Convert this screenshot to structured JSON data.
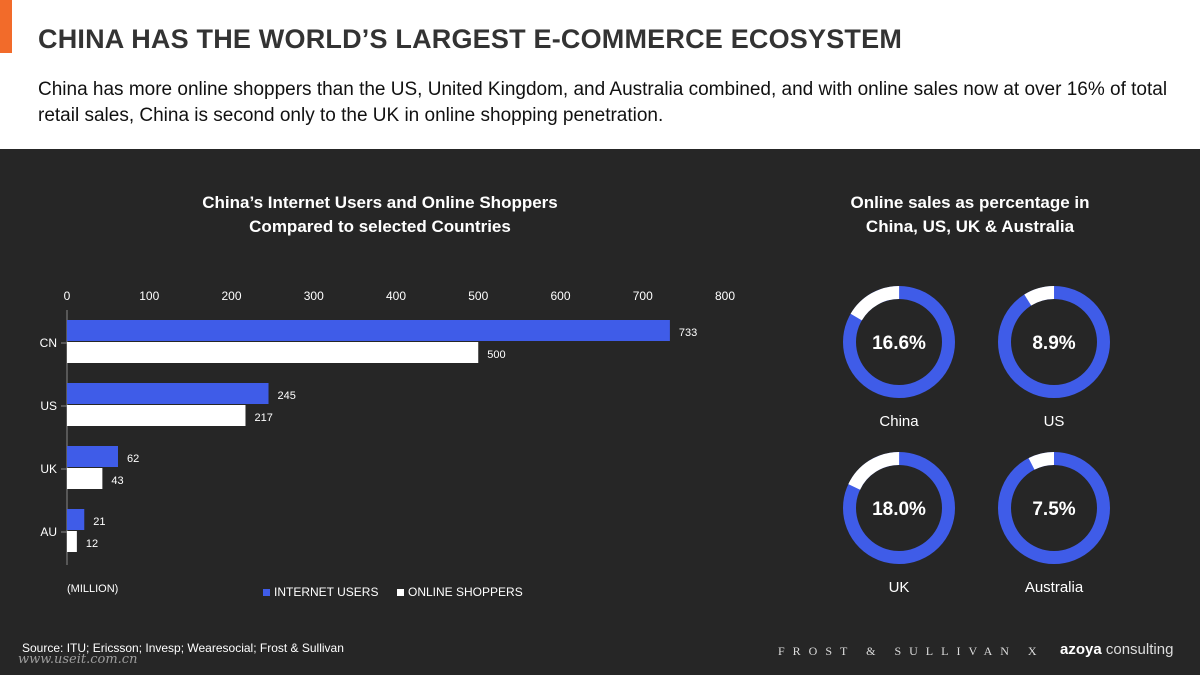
{
  "header": {
    "title": "CHINA HAS THE WORLD’S LARGEST E-COMMERCE ECOSYSTEM",
    "subtitle": "China has more online shoppers than the US, United Kingdom, and Australia combined, and with online sales now at over 16% of total retail sales, China is second only to the UK in online shopping penetration."
  },
  "colors": {
    "accent": "#f26b2a",
    "blue": "#3f5ce8",
    "white": "#ffffff",
    "panel": "#262626"
  },
  "chart_data": [
    {
      "type": "bar",
      "orientation": "horizontal",
      "title": "China’s Internet Users and Online Shoppers\nCompared to selected Countries",
      "categories": [
        "CN",
        "US",
        "UK",
        "AU"
      ],
      "series": [
        {
          "name": "INTERNET USERS",
          "values": [
            733,
            245,
            62,
            21
          ],
          "color": "#3f5ce8"
        },
        {
          "name": "ONLINE SHOPPERS",
          "values": [
            500,
            217,
            43,
            12
          ],
          "color": "#ffffff"
        }
      ],
      "xlim": [
        0,
        800
      ],
      "xticks": [
        0,
        100,
        200,
        300,
        400,
        500,
        600,
        700,
        800
      ],
      "unit_label": "(MILLION)",
      "legend_position": "bottom"
    },
    {
      "type": "pie",
      "variant": "donut",
      "title": "Online sales as percentage in\nChina, US, UK & Australia",
      "items": [
        {
          "label": "China",
          "value": 16.6,
          "display": "16.6%"
        },
        {
          "label": "US",
          "value": 8.9,
          "display": "8.9%"
        },
        {
          "label": "UK",
          "value": 18.0,
          "display": "18.0%"
        },
        {
          "label": "Australia",
          "value": 7.5,
          "display": "7.5%"
        }
      ]
    }
  ],
  "footer": {
    "source": "Source: ITU; Ericsson; Invesp; Wearesocial; Frost & Sullivan",
    "watermark": "www.useit.com.cn",
    "brand_frost": "FROST & SULLIVAN X",
    "brand_azoya_bold": "azoya",
    "brand_azoya_rest": " consulting"
  }
}
